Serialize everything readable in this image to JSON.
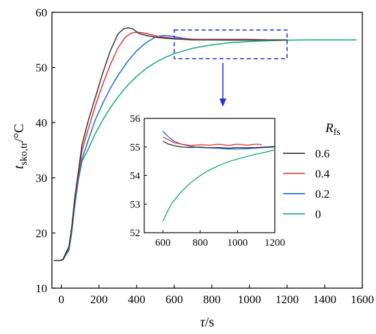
{
  "chart_data": {
    "type": "line",
    "title": "",
    "ylabel": {
      "main": "t",
      "sub": "sko,tr",
      "unit": "/°C"
    },
    "xlabel": {
      "main": "τ",
      "unit": "/s"
    },
    "xlim": [
      -50,
      1600
    ],
    "ylim": [
      10,
      60
    ],
    "xticks": [
      "0",
      "200",
      "400",
      "600",
      "800",
      "1000",
      "1200",
      "1400",
      "1600"
    ],
    "yticks": [
      "10",
      "20",
      "30",
      "40",
      "50",
      "60"
    ],
    "legend": {
      "title_main": "R",
      "title_sub": "fs",
      "placement": "right, inside inset region"
    },
    "colors": {
      "0.6": "#3a3a3a",
      "0.4": "#e8393b",
      "0.2": "#1f6fd8",
      "0": "#1aaa7c",
      "zoom_box": "#2233dd",
      "arrow": "#2233dd"
    },
    "series": [
      {
        "name": "0.6",
        "x": [
          -40,
          -5,
          10,
          25,
          40,
          55,
          70,
          90,
          110,
          140,
          180,
          220,
          260,
          300,
          330,
          355,
          380,
          410,
          450,
          500,
          550,
          600,
          700,
          800,
          900,
          1000,
          1100,
          1200
        ],
        "y": [
          15,
          15,
          15.3,
          16.5,
          17.5,
          21,
          26,
          31,
          36,
          40,
          44.5,
          49,
          53,
          56,
          57,
          57.2,
          57,
          56.2,
          55.8,
          55.5,
          55.3,
          55.2,
          55.0,
          55.0,
          55.0,
          55.0,
          55.0,
          55.0
        ]
      },
      {
        "name": "0.4",
        "x": [
          -40,
          -5,
          10,
          25,
          40,
          55,
          70,
          90,
          110,
          140,
          180,
          220,
          260,
          300,
          340,
          370,
          400,
          430,
          470,
          520,
          600,
          700,
          800,
          900,
          1000,
          1100,
          1200
        ],
        "y": [
          15,
          15,
          15.3,
          16.4,
          17.3,
          20.8,
          25.5,
          30.5,
          35,
          38.5,
          43,
          47,
          50.5,
          53.5,
          55.5,
          56.2,
          56.4,
          56.3,
          56,
          55.6,
          55.3,
          55.1,
          55.1,
          55.1,
          55.1,
          55.0,
          55.0
        ]
      },
      {
        "name": "0.2",
        "x": [
          -40,
          -5,
          10,
          25,
          40,
          55,
          70,
          90,
          110,
          140,
          180,
          220,
          260,
          300,
          350,
          400,
          450,
          500,
          540,
          580,
          600,
          650,
          700,
          800,
          900,
          1000,
          1100,
          1200
        ],
        "y": [
          15,
          15,
          15.2,
          16.2,
          17.1,
          20.3,
          25,
          29.8,
          33.5,
          36.5,
          40.5,
          43.5,
          46.2,
          48.5,
          51,
          53,
          54.5,
          55.5,
          55.8,
          55.7,
          55.6,
          55.3,
          55.1,
          55.0,
          54.95,
          54.95,
          55.0,
          55.0
        ]
      },
      {
        "name": "0",
        "x": [
          -40,
          -5,
          10,
          25,
          40,
          55,
          70,
          90,
          110,
          140,
          180,
          220,
          260,
          300,
          350,
          400,
          450,
          500,
          550,
          600,
          700,
          800,
          900,
          1000,
          1100,
          1200,
          1300,
          1400,
          1500,
          1570
        ],
        "y": [
          15,
          15,
          15.2,
          16,
          16.8,
          20,
          24.5,
          29.5,
          33,
          35,
          38,
          40.5,
          42.7,
          44.6,
          46.7,
          48.4,
          49.8,
          50.9,
          51.8,
          52.5,
          53.5,
          54.1,
          54.5,
          54.7,
          54.85,
          54.95,
          55.0,
          55.0,
          55.0,
          55.0
        ]
      }
    ],
    "zoom_box": {
      "x_range": [
        600,
        1200
      ],
      "y_range": [
        51.6,
        56.8
      ]
    },
    "inset": {
      "type": "line",
      "xlim": [
        500,
        1200
      ],
      "ylim": [
        52,
        56
      ],
      "xticks": [
        "600",
        "800",
        "1000",
        "1200"
      ],
      "yticks": [
        "52",
        "53",
        "54",
        "55",
        "56"
      ],
      "series": [
        {
          "name": "0.6",
          "x": [
            600,
            630,
            660,
            700,
            750,
            800,
            850,
            900,
            950,
            1000,
            1050,
            1100,
            1150,
            1200
          ],
          "y": [
            55.2,
            55.1,
            55.05,
            55.0,
            54.98,
            55.0,
            54.97,
            54.98,
            54.96,
            54.98,
            54.97,
            54.98,
            55.0,
            55.02
          ]
        },
        {
          "name": "0.4",
          "x": [
            600,
            630,
            660,
            700,
            750,
            800,
            850,
            900,
            950,
            1000,
            1050,
            1100,
            1130
          ],
          "y": [
            55.35,
            55.25,
            55.15,
            55.1,
            55.05,
            55.08,
            55.06,
            55.1,
            55.05,
            55.1,
            55.06,
            55.1,
            55.08
          ]
        },
        {
          "name": "0.2",
          "x": [
            600,
            630,
            660,
            700,
            750,
            800,
            850,
            900,
            950,
            1000,
            1050,
            1100,
            1150,
            1200
          ],
          "y": [
            55.55,
            55.35,
            55.2,
            55.1,
            55.02,
            54.98,
            54.97,
            54.95,
            54.93,
            54.93,
            54.94,
            54.96,
            54.98,
            55.0
          ]
        },
        {
          "name": "0",
          "x": [
            600,
            625,
            650,
            700,
            750,
            800,
            850,
            900,
            950,
            1000,
            1050,
            1100,
            1150,
            1200
          ],
          "y": [
            52.4,
            52.75,
            53.05,
            53.45,
            53.75,
            54.0,
            54.2,
            54.35,
            54.48,
            54.58,
            54.67,
            54.75,
            54.82,
            54.9
          ]
        }
      ]
    }
  }
}
